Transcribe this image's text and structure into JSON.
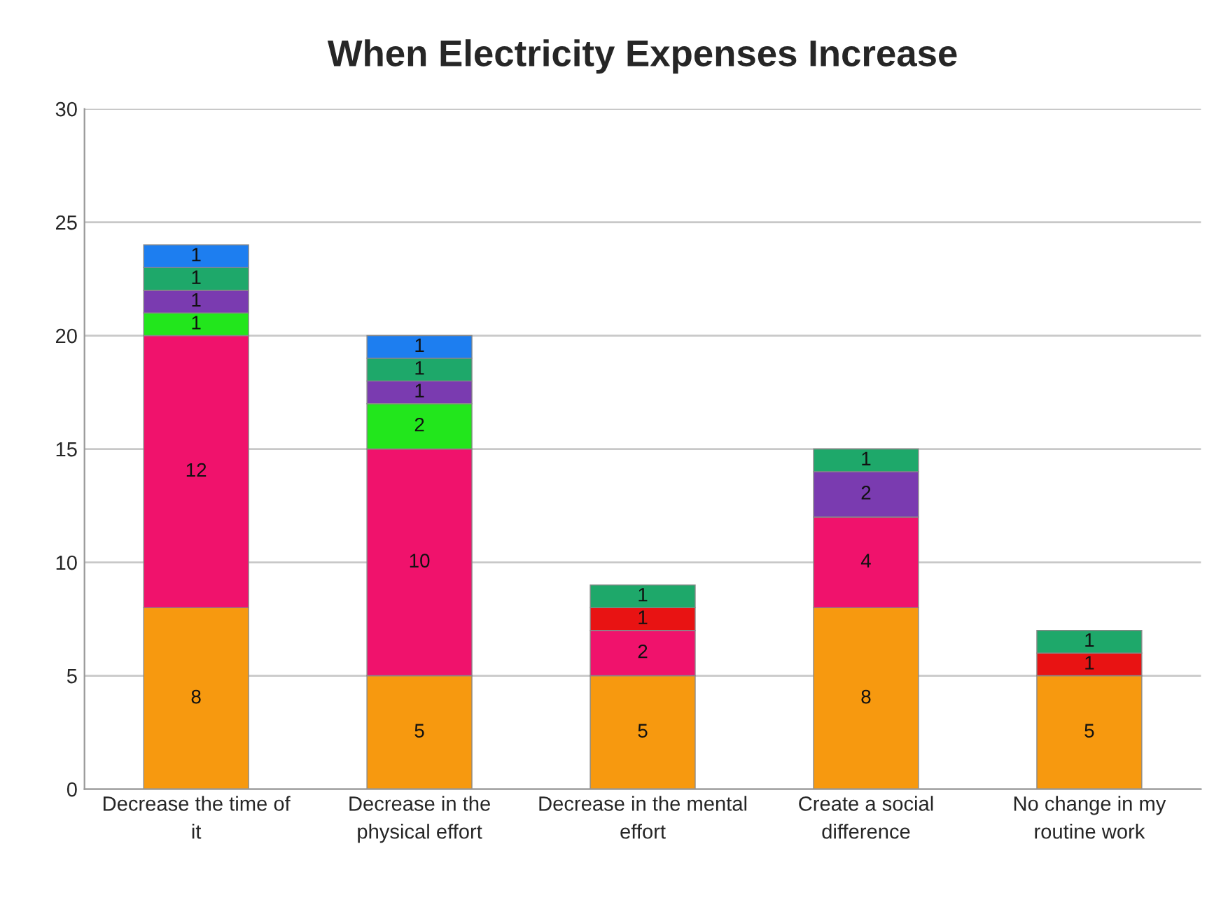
{
  "chart_data": {
    "type": "bar",
    "title": "When Electricity Expenses Increase",
    "stacked": true,
    "categories": [
      "Decrease the time of it",
      "Decrease in the physical effort",
      "Decrease in the mental effort",
      "Create a social difference",
      "No change in my routine work"
    ],
    "series": [
      {
        "color": "#f7990f",
        "values": [
          8,
          5,
          5,
          8,
          5
        ]
      },
      {
        "color": "#f0126c",
        "values": [
          12,
          10,
          2,
          4,
          null
        ]
      },
      {
        "color": "#e81313",
        "values": [
          null,
          null,
          1,
          null,
          1
        ]
      },
      {
        "color": "#22e61c",
        "values": [
          1,
          2,
          null,
          null,
          null
        ]
      },
      {
        "color": "#7a3bb0",
        "values": [
          1,
          1,
          null,
          2,
          null
        ]
      },
      {
        "color": "#1ea86a",
        "values": [
          1,
          1,
          1,
          1,
          1
        ]
      },
      {
        "color": "#1d7ef0",
        "values": [
          1,
          1,
          null,
          null,
          null
        ]
      }
    ],
    "ylim": [
      0,
      30
    ],
    "yticks": [
      0,
      5,
      10,
      15,
      20,
      25,
      30
    ],
    "grid": "y",
    "data_labels": true
  }
}
